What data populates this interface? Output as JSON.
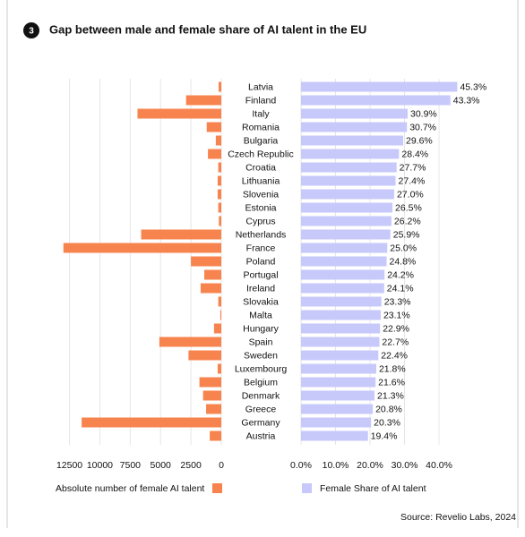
{
  "badge": "3",
  "title": "Gap between male and female share of AI talent in the EU",
  "source": "Source: Revelio Labs, 2024",
  "chart_data": [
    {
      "type": "bar",
      "orientation": "horizontal",
      "reversed": true,
      "categories": [
        "Latvia",
        "Finland",
        "Italy",
        "Romania",
        "Bulgaria",
        "Czech Republic",
        "Croatia",
        "Lithuania",
        "Slovenia",
        "Estonia",
        "Cyprus",
        "Netherlands",
        "France",
        "Poland",
        "Portugal",
        "Ireland",
        "Slovakia",
        "Malta",
        "Hungary",
        "Spain",
        "Sweden",
        "Luxembourg",
        "Belgium",
        "Denmark",
        "Greece",
        "Germany",
        "Austria"
      ],
      "series": [
        {
          "name": "Absolute number of female AI talent",
          "color": "#f7844f",
          "values": [
            220,
            2900,
            6900,
            1200,
            450,
            1100,
            250,
            300,
            300,
            250,
            200,
            6600,
            13000,
            2500,
            1400,
            1700,
            250,
            80,
            600,
            5100,
            2700,
            300,
            1800,
            1500,
            1250,
            11500,
            950
          ]
        }
      ],
      "xlim": [
        0,
        13500
      ],
      "xticks": [
        12500,
        10000,
        7500,
        5000,
        2500,
        0
      ],
      "grid": true
    },
    {
      "type": "bar",
      "orientation": "horizontal",
      "reversed": false,
      "series": [
        {
          "name": "Female Share of AI talent",
          "color": "#c7c9fb",
          "values": [
            45.3,
            43.3,
            30.9,
            30.7,
            29.6,
            28.4,
            27.7,
            27.4,
            27.0,
            26.5,
            26.2,
            25.9,
            25.0,
            24.8,
            24.2,
            24.1,
            23.3,
            23.1,
            22.9,
            22.7,
            22.4,
            21.8,
            21.6,
            21.3,
            20.8,
            20.3,
            19.4
          ],
          "value_labels": [
            "45.3%",
            "43.3%",
            "30.9%",
            "30.7%",
            "29.6%",
            "28.4%",
            "27.7%",
            "27.4%",
            "27.0%",
            "26.5%",
            "26.2%",
            "25.9%",
            "25.0%",
            "24.8%",
            "24.2%",
            "24.1%",
            "23.3%",
            "23.1%",
            "22.9%",
            "22.7%",
            "22.4%",
            "21.8%",
            "21.6%",
            "21.3%",
            "20.8%",
            "20.3%",
            "19.4%"
          ]
        }
      ],
      "xlim": [
        0,
        47
      ],
      "xticks": [
        {
          "value": 0,
          "label": "0.0%"
        },
        {
          "value": 10,
          "label": "10.0%"
        },
        {
          "value": 20,
          "label": "20.0%"
        },
        {
          "value": 30,
          "label": "30.0%"
        },
        {
          "value": 40,
          "label": "40.0%"
        }
      ],
      "grid": true
    }
  ]
}
